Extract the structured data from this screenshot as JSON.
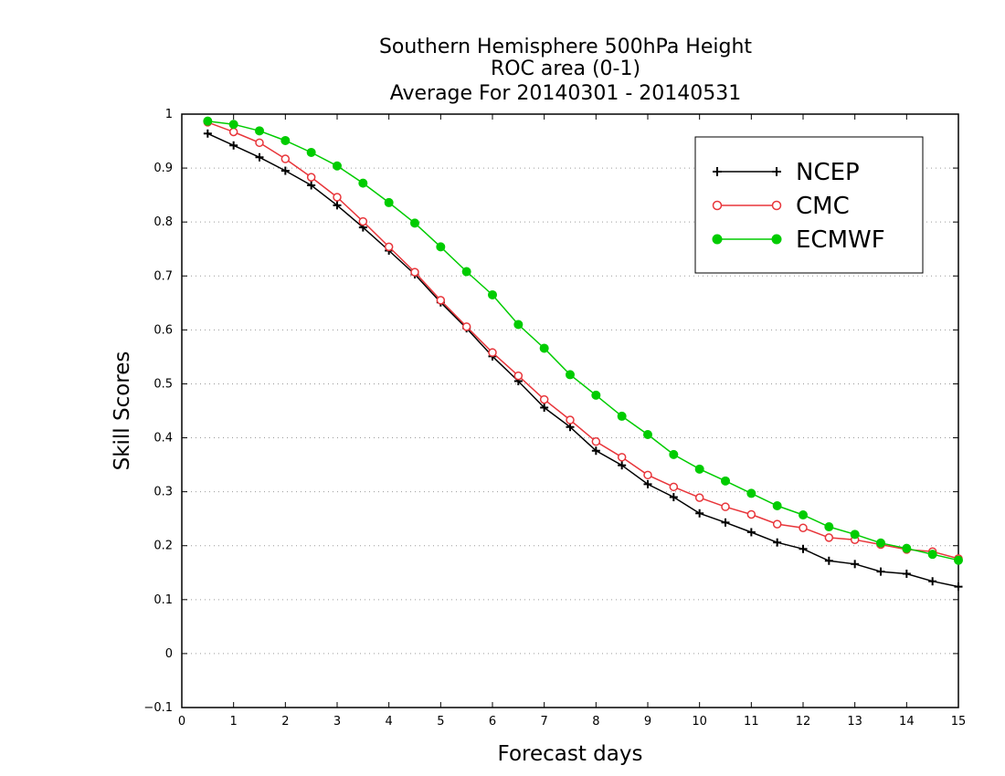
{
  "chart_data": {
    "type": "line",
    "title": [
      "Southern Hemisphere 500hPa Height",
      "ROC area (0-1)",
      "Average For 20140301 - 20140531"
    ],
    "xlabel": "Forecast days",
    "ylabel": "Skill Scores",
    "xlim": [
      0,
      15
    ],
    "ylim": [
      -0.1,
      1
    ],
    "xticks": [
      "0",
      "1",
      "2",
      "3",
      "4",
      "5",
      "6",
      "7",
      "8",
      "9",
      "10",
      "11",
      "12",
      "13",
      "14",
      "15"
    ],
    "yticks": [
      "−0.1",
      "0",
      "0.1",
      "0.2",
      "0.3",
      "0.4",
      "0.5",
      "0.6",
      "0.7",
      "0.8",
      "0.9",
      "1"
    ],
    "grid": "horizontal dotted",
    "legend_position": "top-right",
    "x": [
      0.5,
      1,
      1.5,
      2,
      2.5,
      3,
      3.5,
      4,
      4.5,
      5,
      5.5,
      6,
      6.5,
      7,
      7.5,
      8,
      8.5,
      9,
      9.5,
      10,
      10.5,
      11,
      11.5,
      12,
      12.5,
      13,
      13.5,
      14,
      14.5,
      15
    ],
    "series": [
      {
        "name": "NCEP",
        "color": "#000000",
        "marker": "plus",
        "values": [
          0.964,
          0.942,
          0.92,
          0.895,
          0.868,
          0.831,
          0.79,
          0.747,
          0.703,
          0.651,
          0.603,
          0.551,
          0.505,
          0.456,
          0.42,
          0.376,
          0.349,
          0.314,
          0.29,
          0.26,
          0.243,
          0.225,
          0.206,
          0.194,
          0.172,
          0.166,
          0.152,
          0.148,
          0.134,
          0.124
        ]
      },
      {
        "name": "CMC",
        "color": "#e8353a",
        "marker": "open-circle",
        "values": [
          0.985,
          0.967,
          0.947,
          0.917,
          0.883,
          0.846,
          0.801,
          0.754,
          0.707,
          0.655,
          0.606,
          0.558,
          0.515,
          0.471,
          0.433,
          0.393,
          0.364,
          0.331,
          0.309,
          0.289,
          0.272,
          0.258,
          0.24,
          0.233,
          0.215,
          0.211,
          0.202,
          0.193,
          0.189,
          0.176
        ]
      },
      {
        "name": "ECMWF",
        "color": "#00cc00",
        "marker": "filled-circle",
        "values": [
          0.987,
          0.981,
          0.969,
          0.951,
          0.929,
          0.904,
          0.872,
          0.836,
          0.798,
          0.754,
          0.708,
          0.665,
          0.61,
          0.566,
          0.517,
          0.479,
          0.44,
          0.406,
          0.369,
          0.342,
          0.32,
          0.297,
          0.274,
          0.257,
          0.235,
          0.221,
          0.205,
          0.195,
          0.184,
          0.173
        ]
      }
    ]
  }
}
